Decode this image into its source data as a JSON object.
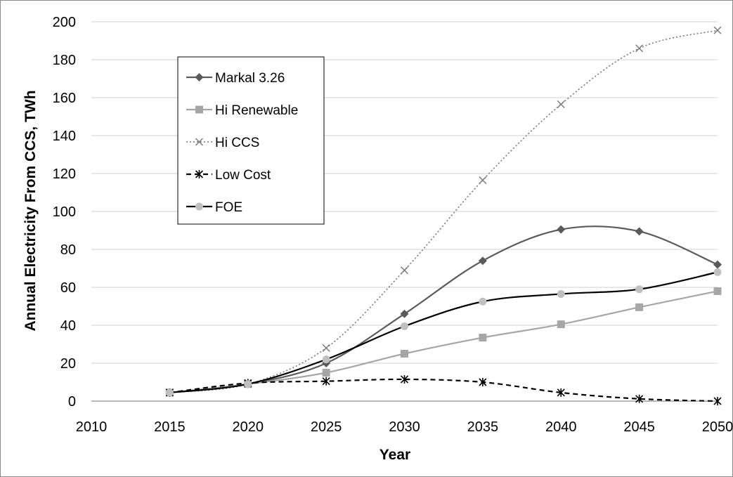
{
  "chart_data": {
    "type": "line",
    "xlabel": "Year",
    "ylabel": "Annual Electricity From CCS, TWh",
    "xlim": [
      2010,
      2050
    ],
    "ylim": [
      0,
      200
    ],
    "x_ticks": [
      "2010",
      "2015",
      "2020",
      "2025",
      "2030",
      "2035",
      "2040",
      "2045",
      "2050"
    ],
    "y_ticks": [
      "0",
      "20",
      "40",
      "60",
      "80",
      "100",
      "120",
      "140",
      "160",
      "180",
      "200"
    ],
    "grid": "horizontal",
    "legend_position": "upper-left",
    "x": [
      2015,
      2020,
      2025,
      2030,
      2035,
      2040,
      2045,
      2050
    ],
    "series": [
      {
        "name": "Markal 3.26",
        "color": "#5a5a5a",
        "dash": "solid",
        "marker": "diamond",
        "values": [
          4.5,
          9,
          20,
          46,
          74,
          90.5,
          89.5,
          72
        ]
      },
      {
        "name": "Hi Renewable",
        "color": "#a6a6a6",
        "dash": "solid",
        "marker": "square",
        "values": [
          4.5,
          9,
          15,
          25,
          33.5,
          40.5,
          49.5,
          58
        ]
      },
      {
        "name": "Hi CCS",
        "color": "#777777",
        "dash": "dotted",
        "marker": "x",
        "values": [
          4.5,
          9,
          28,
          69,
          116.5,
          156.5,
          186,
          195.5
        ]
      },
      {
        "name": "Low Cost",
        "color": "#000000",
        "dash": "dashed",
        "marker": "star",
        "values": [
          4.5,
          9.5,
          10.5,
          11.5,
          10,
          4.5,
          1.2,
          0
        ]
      },
      {
        "name": "FOE",
        "color": "#000000",
        "dash": "solid",
        "marker": "circle",
        "marker_color": "#c0c0c0",
        "values": [
          4.5,
          9,
          22,
          39.5,
          52.5,
          56.5,
          59,
          68
        ]
      }
    ]
  }
}
